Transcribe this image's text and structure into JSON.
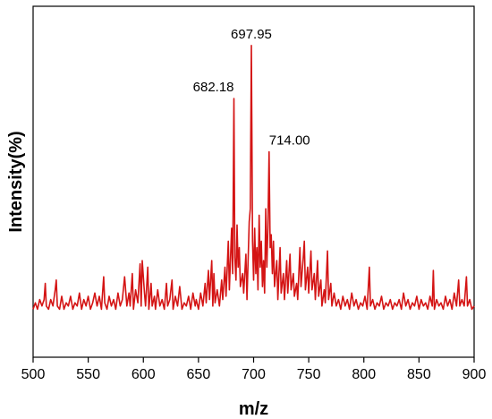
{
  "chart_data": {
    "type": "line",
    "title": "",
    "xlabel": "m/z",
    "ylabel": "Intensity(%)",
    "xlim": [
      500,
      900
    ],
    "ylim": [
      0,
      100
    ],
    "x_ticks": [
      500,
      550,
      600,
      650,
      700,
      750,
      800,
      850,
      900
    ],
    "y_ticks_shown": false,
    "grid": false,
    "legend": "none",
    "line_color": "#d41414",
    "annotations": [
      {
        "text": "697.95",
        "x": 697.95,
        "y": 90.4
      },
      {
        "text": "682.18",
        "x": 682.18,
        "y": 74.0
      },
      {
        "text": "714.00",
        "x": 714.0,
        "y": 57.6
      }
    ],
    "series": [
      {
        "values": [
          [
            500,
            9
          ],
          [
            502,
            11
          ],
          [
            504,
            9
          ],
          [
            506,
            12
          ],
          [
            508,
            10
          ],
          [
            510,
            12
          ],
          [
            511,
            17
          ],
          [
            512,
            10
          ],
          [
            514,
            9
          ],
          [
            516,
            12
          ],
          [
            518,
            10
          ],
          [
            520,
            15
          ],
          [
            521,
            18
          ],
          [
            522,
            10
          ],
          [
            524,
            9
          ],
          [
            526,
            13
          ],
          [
            528,
            9
          ],
          [
            530,
            11
          ],
          [
            532,
            10
          ],
          [
            534,
            13
          ],
          [
            536,
            9
          ],
          [
            538,
            11
          ],
          [
            540,
            10
          ],
          [
            542,
            14
          ],
          [
            544,
            9
          ],
          [
            546,
            12
          ],
          [
            548,
            10
          ],
          [
            550,
            13
          ],
          [
            552,
            9
          ],
          [
            554,
            11
          ],
          [
            556,
            14
          ],
          [
            558,
            10
          ],
          [
            560,
            13
          ],
          [
            562,
            9
          ],
          [
            564,
            19
          ],
          [
            565,
            11
          ],
          [
            567,
            9
          ],
          [
            569,
            13
          ],
          [
            571,
            10
          ],
          [
            573,
            12
          ],
          [
            575,
            9
          ],
          [
            577,
            14
          ],
          [
            579,
            10
          ],
          [
            581,
            12
          ],
          [
            583,
            19
          ],
          [
            585,
            10
          ],
          [
            587,
            14
          ],
          [
            588,
            10
          ],
          [
            590,
            20
          ],
          [
            591,
            9
          ],
          [
            593,
            15
          ],
          [
            595,
            11
          ],
          [
            597,
            23
          ],
          [
            598,
            10
          ],
          [
            599,
            24
          ],
          [
            601,
            14
          ],
          [
            602,
            10
          ],
          [
            604,
            22
          ],
          [
            605,
            9
          ],
          [
            607,
            17
          ],
          [
            608,
            10
          ],
          [
            610,
            13
          ],
          [
            611,
            9
          ],
          [
            613,
            15
          ],
          [
            615,
            10
          ],
          [
            617,
            12
          ],
          [
            619,
            9
          ],
          [
            621,
            17
          ],
          [
            622,
            10
          ],
          [
            624,
            12
          ],
          [
            626,
            18
          ],
          [
            627,
            9
          ],
          [
            629,
            13
          ],
          [
            631,
            10
          ],
          [
            633,
            16
          ],
          [
            635,
            9
          ],
          [
            637,
            11
          ],
          [
            639,
            10
          ],
          [
            641,
            13
          ],
          [
            643,
            9
          ],
          [
            645,
            14
          ],
          [
            647,
            10
          ],
          [
            648,
            12
          ],
          [
            650,
            9
          ],
          [
            652,
            14
          ],
          [
            654,
            10
          ],
          [
            656,
            17
          ],
          [
            657,
            11
          ],
          [
            659,
            21
          ],
          [
            660,
            12
          ],
          [
            662,
            24
          ],
          [
            663,
            10
          ],
          [
            664,
            20
          ],
          [
            665,
            11
          ],
          [
            667,
            15
          ],
          [
            669,
            10
          ],
          [
            671,
            18
          ],
          [
            672,
            12
          ],
          [
            674,
            22
          ],
          [
            675,
            13
          ],
          [
            677,
            30
          ],
          [
            678,
            15
          ],
          [
            680,
            34
          ],
          [
            681,
            20
          ],
          [
            682.18,
            74
          ],
          [
            683,
            25
          ],
          [
            684,
            18
          ],
          [
            685,
            35
          ],
          [
            686,
            22
          ],
          [
            687,
            28
          ],
          [
            688,
            16
          ],
          [
            690,
            20
          ],
          [
            691,
            14
          ],
          [
            693,
            26
          ],
          [
            694,
            12
          ],
          [
            696,
            36
          ],
          [
            697,
            40
          ],
          [
            697.95,
            90.4
          ],
          [
            699,
            30
          ],
          [
            700,
            18
          ],
          [
            701,
            34
          ],
          [
            702,
            20
          ],
          [
            703,
            28
          ],
          [
            704,
            15
          ],
          [
            705,
            38
          ],
          [
            706,
            22
          ],
          [
            707,
            30
          ],
          [
            708,
            16
          ],
          [
            709,
            24
          ],
          [
            710,
            14
          ],
          [
            711,
            40
          ],
          [
            712,
            22
          ],
          [
            713,
            34
          ],
          [
            714,
            57.6
          ],
          [
            715,
            28
          ],
          [
            716,
            32
          ],
          [
            717,
            20
          ],
          [
            718,
            30
          ],
          [
            719,
            16
          ],
          [
            721,
            24
          ],
          [
            722,
            12
          ],
          [
            724,
            28
          ],
          [
            725,
            14
          ],
          [
            727,
            20
          ],
          [
            728,
            12
          ],
          [
            730,
            24
          ],
          [
            731,
            14
          ],
          [
            733,
            26
          ],
          [
            734,
            15
          ],
          [
            736,
            20
          ],
          [
            737,
            13
          ],
          [
            739,
            17
          ],
          [
            740,
            12
          ],
          [
            742,
            28
          ],
          [
            743,
            16
          ],
          [
            745,
            25
          ],
          [
            746,
            30
          ],
          [
            747,
            15
          ],
          [
            749,
            22
          ],
          [
            750,
            14
          ],
          [
            752,
            27
          ],
          [
            753,
            15
          ],
          [
            755,
            20
          ],
          [
            756,
            12
          ],
          [
            758,
            24
          ],
          [
            759,
            13
          ],
          [
            761,
            18
          ],
          [
            762,
            10
          ],
          [
            764,
            15
          ],
          [
            765,
            11
          ],
          [
            767,
            27
          ],
          [
            768,
            12
          ],
          [
            770,
            17
          ],
          [
            771,
            10
          ],
          [
            773,
            14
          ],
          [
            775,
            10
          ],
          [
            777,
            12
          ],
          [
            779,
            9
          ],
          [
            781,
            13
          ],
          [
            783,
            10
          ],
          [
            785,
            12
          ],
          [
            787,
            9
          ],
          [
            789,
            14
          ],
          [
            791,
            10
          ],
          [
            793,
            12
          ],
          [
            795,
            9
          ],
          [
            797,
            11
          ],
          [
            799,
            10
          ],
          [
            801,
            13
          ],
          [
            803,
            9
          ],
          [
            805,
            22
          ],
          [
            806,
            10
          ],
          [
            808,
            12
          ],
          [
            810,
            9
          ],
          [
            812,
            11
          ],
          [
            814,
            10
          ],
          [
            816,
            13
          ],
          [
            818,
            9
          ],
          [
            820,
            11
          ],
          [
            822,
            10
          ],
          [
            824,
            12
          ],
          [
            826,
            9
          ],
          [
            828,
            11
          ],
          [
            830,
            10
          ],
          [
            832,
            12
          ],
          [
            834,
            9
          ],
          [
            836,
            14
          ],
          [
            838,
            10
          ],
          [
            840,
            12
          ],
          [
            842,
            9
          ],
          [
            844,
            11
          ],
          [
            846,
            10
          ],
          [
            848,
            13
          ],
          [
            850,
            9
          ],
          [
            852,
            12
          ],
          [
            854,
            10
          ],
          [
            856,
            11
          ],
          [
            858,
            9
          ],
          [
            860,
            13
          ],
          [
            862,
            10
          ],
          [
            863,
            21
          ],
          [
            864,
            9
          ],
          [
            866,
            12
          ],
          [
            868,
            10
          ],
          [
            870,
            11
          ],
          [
            872,
            9
          ],
          [
            874,
            13
          ],
          [
            876,
            10
          ],
          [
            878,
            12
          ],
          [
            880,
            9
          ],
          [
            882,
            14
          ],
          [
            884,
            10
          ],
          [
            886,
            18
          ],
          [
            887,
            10
          ],
          [
            889,
            12
          ],
          [
            891,
            10
          ],
          [
            893,
            19
          ],
          [
            894,
            10
          ],
          [
            896,
            12
          ],
          [
            898,
            9
          ],
          [
            900,
            10
          ]
        ]
      }
    ]
  }
}
